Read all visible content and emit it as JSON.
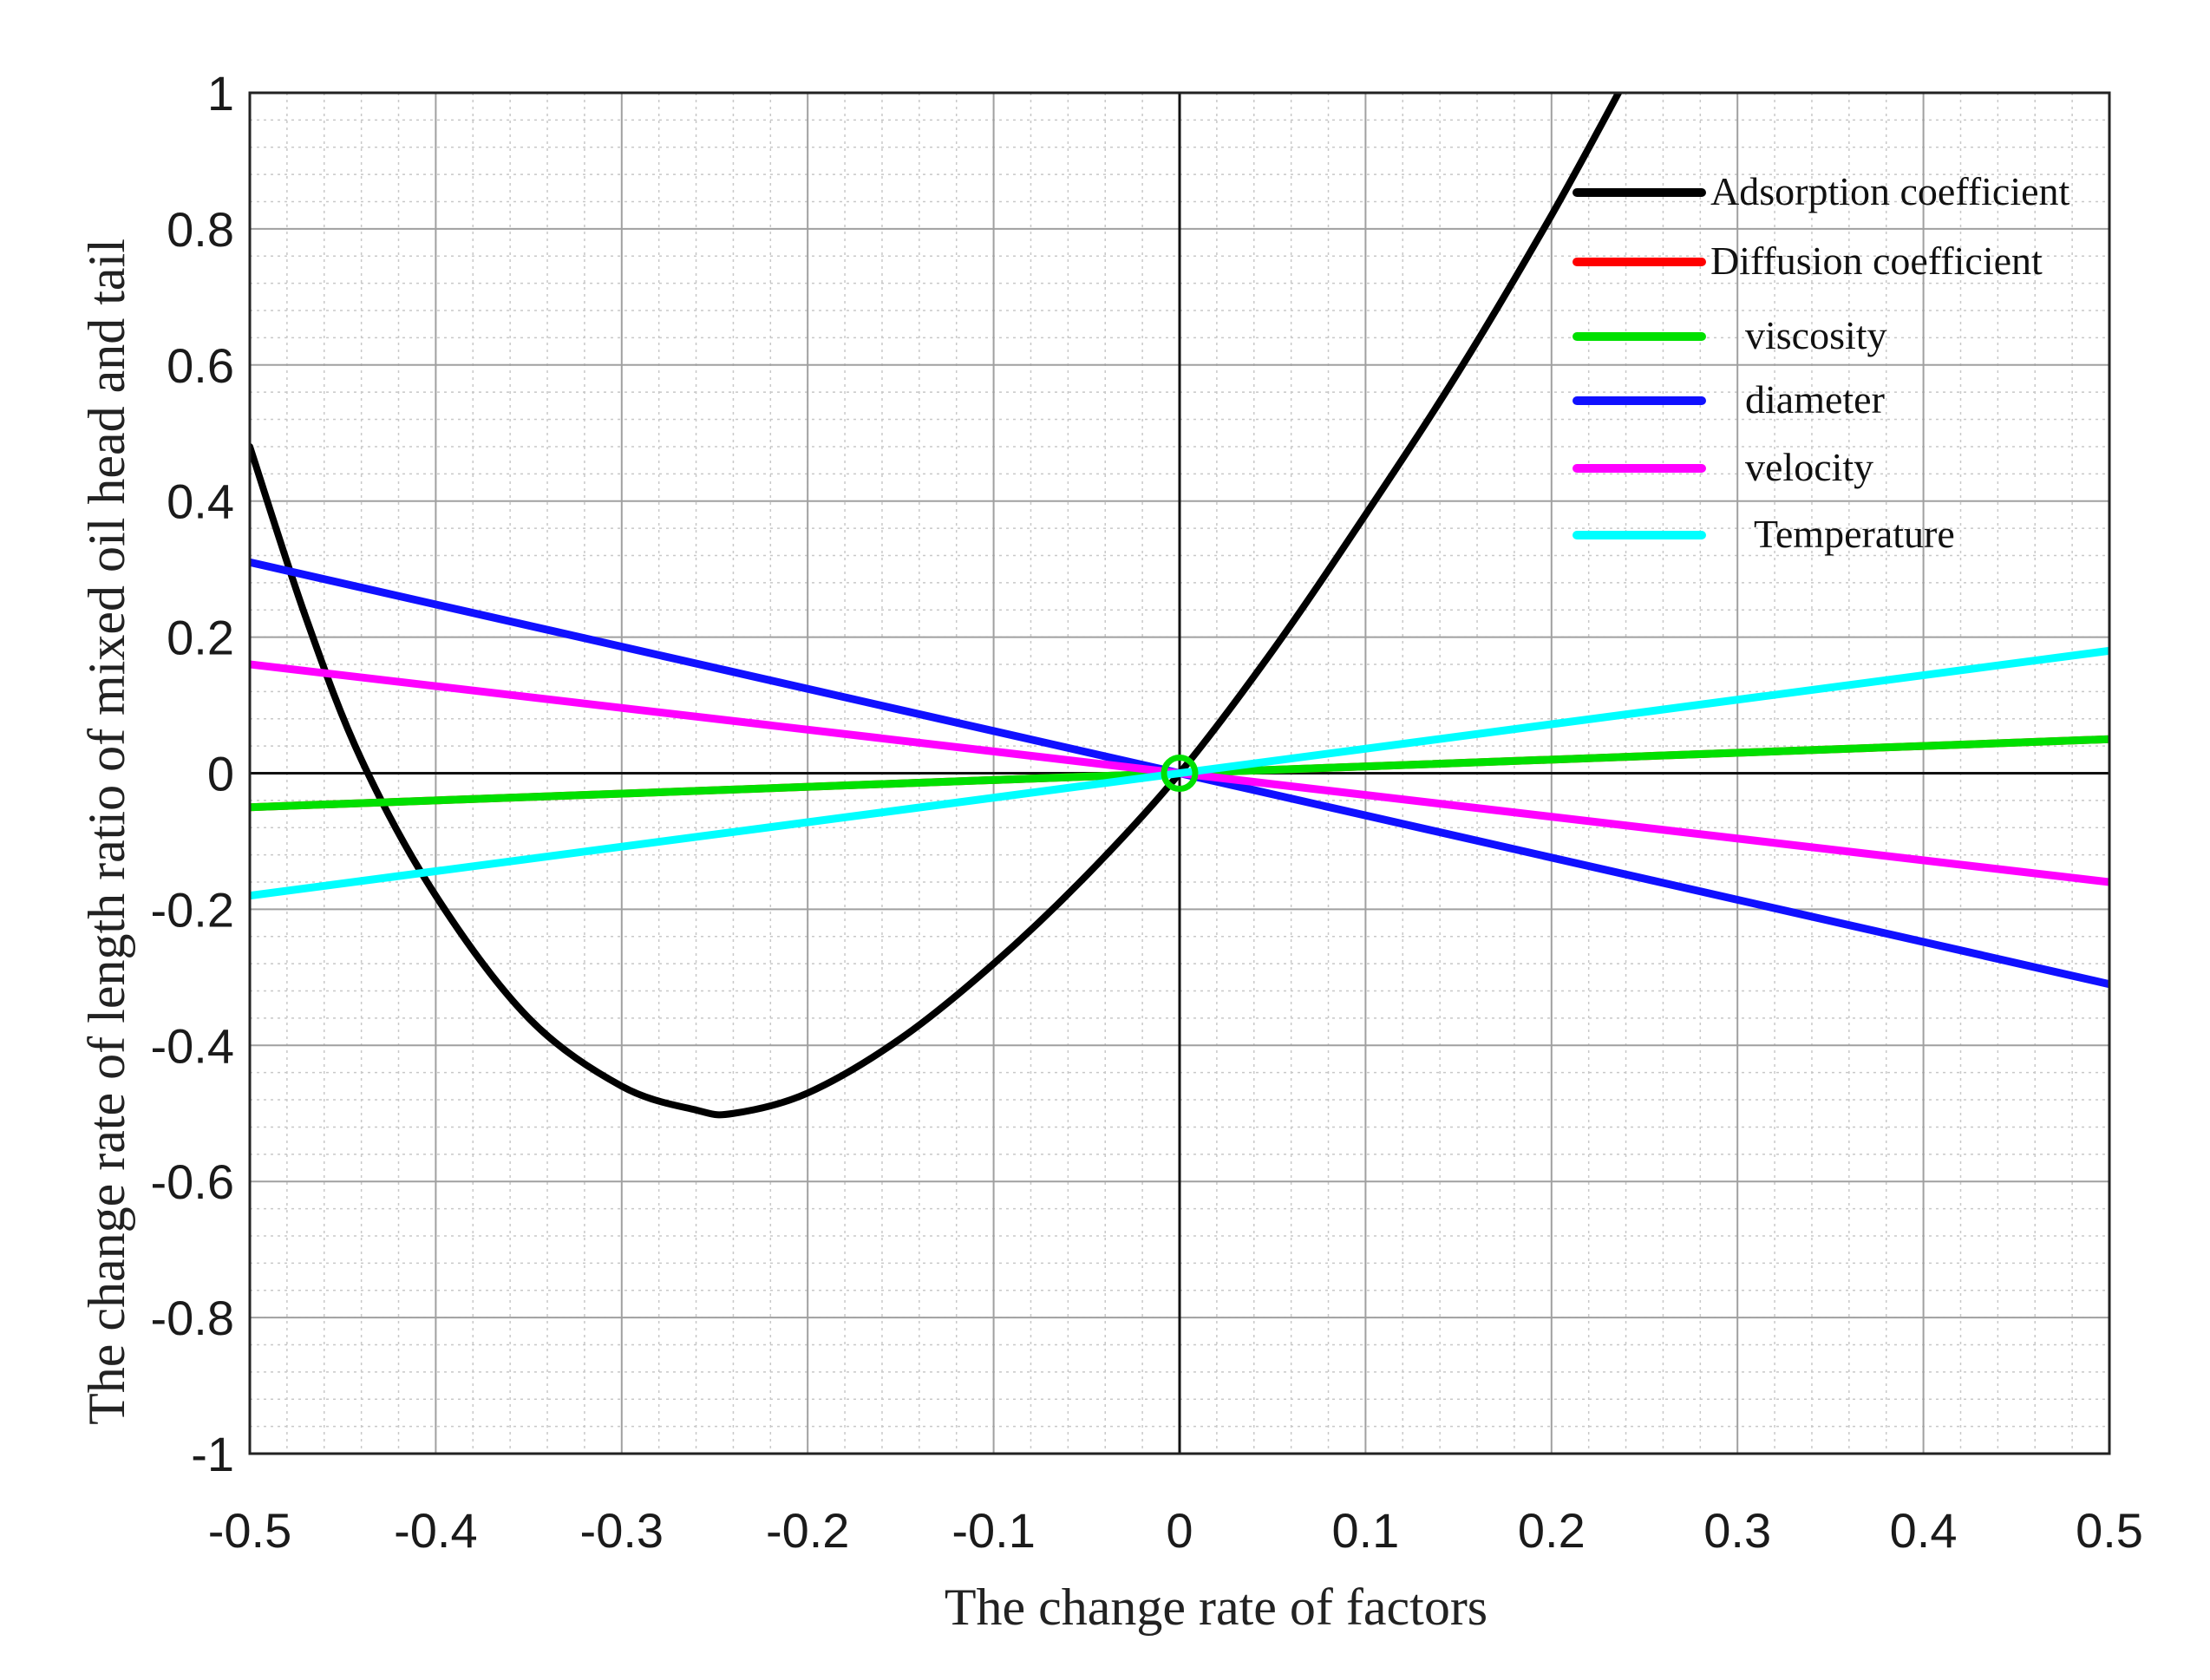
{
  "chart_data": {
    "type": "line",
    "title": "",
    "xlabel": "The change rate of factors",
    "ylabel": "The change rate of length ratio of mixed oil head and tail",
    "xlim": [
      -0.5,
      0.5
    ],
    "ylim": [
      -1,
      1
    ],
    "xticks": [
      "-0.5",
      "-0.4",
      "-0.3",
      "-0.2",
      "-0.1",
      "0",
      "0.1",
      "0.2",
      "0.3",
      "0.4",
      "0.5"
    ],
    "yticks": [
      "1",
      "0.8",
      "0.6",
      "0.4",
      "0.2",
      "0",
      "-0.2",
      "-0.4",
      "-0.6",
      "-0.8",
      "-1"
    ],
    "grid": true,
    "minor_grid": true,
    "legend_position": "top-right",
    "series": [
      {
        "name": "Adsorption coefficient",
        "color": "#000000",
        "x": [
          -0.5,
          -0.47,
          -0.44,
          -0.4,
          -0.35,
          -0.3,
          -0.26,
          -0.24,
          -0.2,
          -0.15,
          -0.1,
          -0.05,
          0,
          0.05,
          0.1,
          0.15,
          0.2,
          0.24
        ],
        "y": [
          0.48,
          0.23,
          0.02,
          -0.18,
          -0.36,
          -0.46,
          -0.495,
          -0.5,
          -0.47,
          -0.39,
          -0.28,
          -0.15,
          0.0,
          0.18,
          0.38,
          0.59,
          0.82,
          1.02
        ]
      },
      {
        "name": "Diffusion coefficient",
        "color": "#ff0000",
        "x": [
          -0.5,
          0.5
        ],
        "y": [
          -0.05,
          0.05
        ]
      },
      {
        "name": "viscosity",
        "color": "#00e000",
        "x": [
          -0.5,
          0.5
        ],
        "y": [
          -0.05,
          0.05
        ]
      },
      {
        "name": "diameter",
        "color": "#1010ff",
        "x": [
          -0.5,
          0.5
        ],
        "y": [
          0.31,
          -0.31
        ]
      },
      {
        "name": "velocity",
        "color": "#ff00ff",
        "x": [
          -0.5,
          0.5
        ],
        "y": [
          0.16,
          -0.16
        ]
      },
      {
        "name": "Temperature",
        "color": "#00ffff",
        "x": [
          -0.5,
          0.5
        ],
        "y": [
          -0.18,
          0.18
        ]
      }
    ],
    "annotations": [
      {
        "name": "origin-marker",
        "x": 0,
        "y": 0,
        "color": "#00e000"
      }
    ]
  }
}
